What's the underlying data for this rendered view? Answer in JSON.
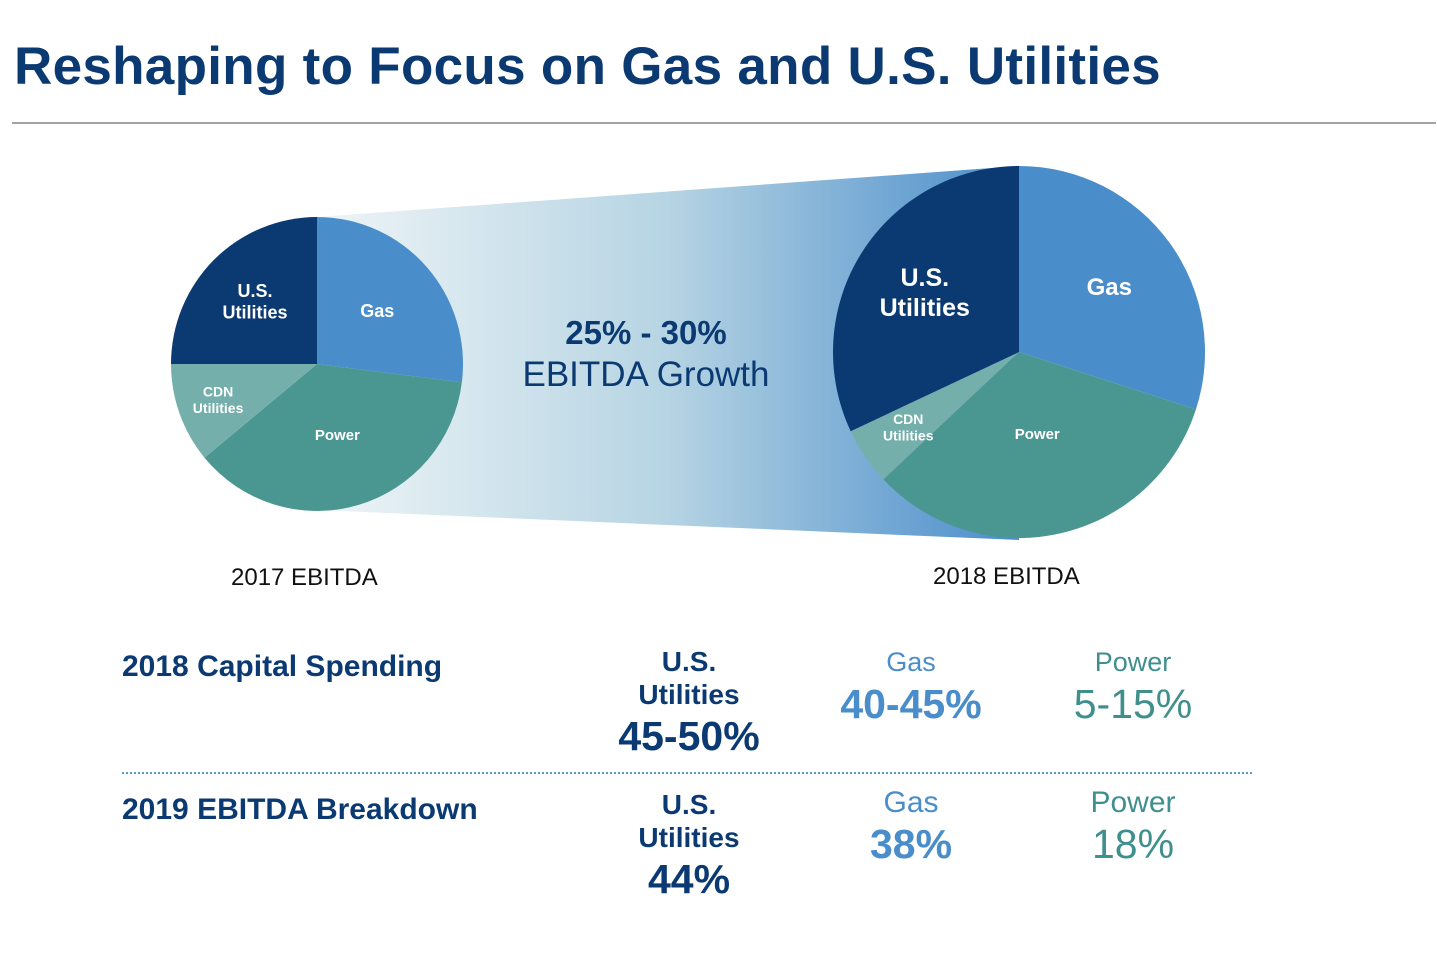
{
  "title": "Reshaping to Focus on Gas and U.S. Utilities",
  "growth": {
    "range": "25% - 30%",
    "label": "EBITDA Growth"
  },
  "colors": {
    "us_utilities": "#0b3a72",
    "gas": "#4a8dcb",
    "power": "#4a9690",
    "cdn_utilities": "#74afab",
    "title": "#0b3a72",
    "power_text": "#3f8f8d"
  },
  "chart_data": [
    {
      "type": "pie",
      "title": "2017 EBITDA",
      "categories": [
        "Gas",
        "Power",
        "CDN Utilities",
        "U.S. Utilities"
      ],
      "labels": [
        "Gas",
        "Power",
        "CDN\nUtilities",
        "U.S.\nUtilities"
      ],
      "values": [
        27,
        37,
        11,
        25
      ]
    },
    {
      "type": "pie",
      "title": "2018 EBITDA",
      "categories": [
        "Gas",
        "Power",
        "CDN Utilities",
        "U.S. Utilities"
      ],
      "labels": [
        "Gas",
        "Power",
        "CDN\nUtilities",
        "U.S.\nUtilities"
      ],
      "values": [
        30,
        33,
        5,
        32
      ]
    }
  ],
  "table": {
    "rows": [
      {
        "label": "2018 Capital Spending",
        "us_head": "U.S. Utilities",
        "us_head_line1": "U.S.",
        "us_head_line2": "Utilities",
        "us_value": "45-50%",
        "gas_head": "Gas",
        "gas_value": "40-45%",
        "power_head": "Power",
        "power_value": "5-15%"
      },
      {
        "label": "2019 EBITDA Breakdown",
        "us_head": "U.S. Utilities",
        "us_head_line1": "U.S.",
        "us_head_line2": "Utilities",
        "us_value": "44%",
        "gas_head": "Gas",
        "gas_value": "38%",
        "power_head": "Power",
        "power_value": "18%"
      }
    ]
  }
}
